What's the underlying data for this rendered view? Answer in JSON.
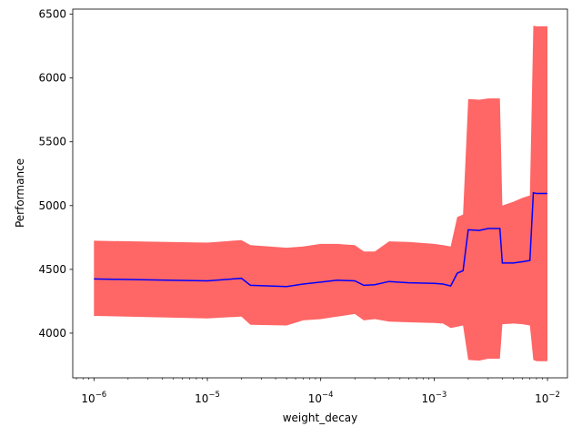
{
  "chart_data": {
    "type": "line",
    "xlabel": "weight_decay",
    "ylabel": "Performance",
    "x_scale": "log",
    "xlim": [
      6.5e-07,
      0.015
    ],
    "ylim": [
      3650,
      6540
    ],
    "x_ticks": [
      {
        "value": 1e-06,
        "label": "10",
        "exp": "−6"
      },
      {
        "value": 1e-05,
        "label": "10",
        "exp": "−5"
      },
      {
        "value": 0.0001,
        "label": "10",
        "exp": "−4"
      },
      {
        "value": 0.001,
        "label": "10",
        "exp": "−3"
      },
      {
        "value": 0.01,
        "label": "10",
        "exp": "−2"
      }
    ],
    "y_ticks": [
      4000,
      4500,
      5000,
      5500,
      6000,
      6500
    ],
    "colors": {
      "line": "#0000ff",
      "band": "#ff0000",
      "band_opacity": 0.6
    },
    "series": {
      "x": [
        1e-06,
        1e-05,
        2e-05,
        2.4e-05,
        5e-05,
        7e-05,
        0.0001,
        0.00014,
        0.0002,
        0.00024,
        0.0003,
        0.0004,
        0.0006,
        0.001,
        0.0012,
        0.0014,
        0.0016,
        0.0018,
        0.002,
        0.0025,
        0.003,
        0.0038,
        0.004,
        0.005,
        0.006,
        0.007,
        0.0075,
        0.008,
        0.01
      ],
      "mean": [
        4425,
        4410,
        4430,
        4375,
        4365,
        4385,
        4400,
        4415,
        4410,
        4375,
        4380,
        4405,
        4395,
        4390,
        4385,
        4370,
        4470,
        4490,
        4810,
        4805,
        4820,
        4820,
        4550,
        4550,
        4560,
        4570,
        5100,
        5095,
        5095
      ],
      "upper": [
        4725,
        4710,
        4730,
        4690,
        4670,
        4680,
        4700,
        4700,
        4690,
        4640,
        4640,
        4720,
        4715,
        4700,
        4690,
        4680,
        4910,
        4930,
        5835,
        5830,
        5840,
        5840,
        5000,
        5030,
        5060,
        5080,
        6410,
        6405,
        6405
      ],
      "lower": [
        4135,
        4115,
        4130,
        4065,
        4060,
        4100,
        4110,
        4130,
        4150,
        4100,
        4110,
        4090,
        4085,
        4080,
        4075,
        4040,
        4050,
        4060,
        3790,
        3785,
        3800,
        3800,
        4070,
        4075,
        4070,
        4060,
        3790,
        3780,
        3780
      ]
    }
  }
}
